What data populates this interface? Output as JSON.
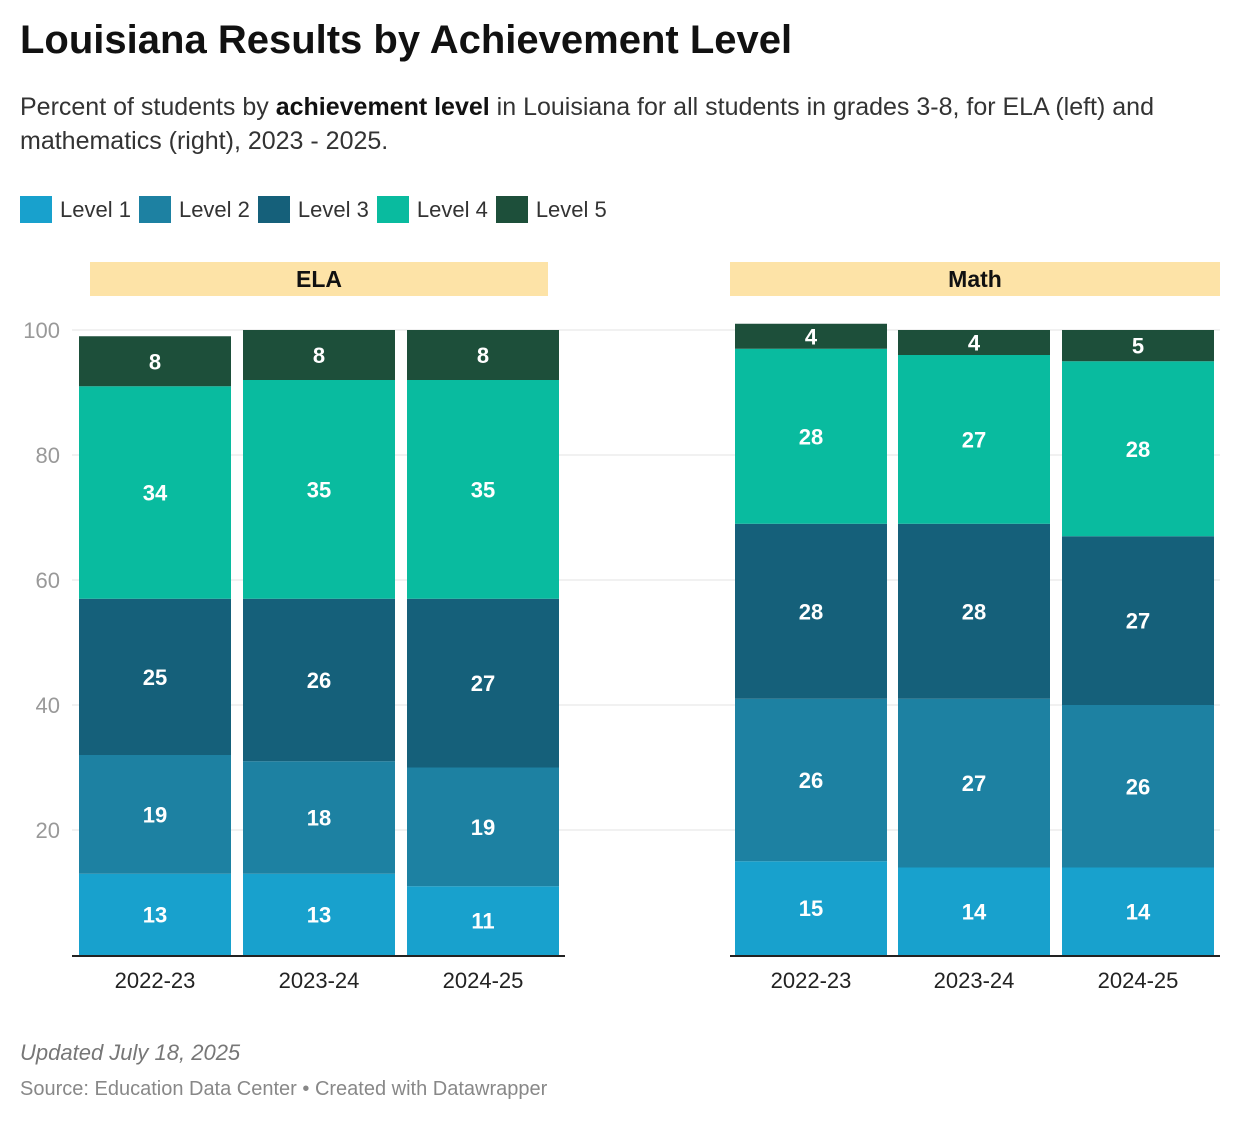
{
  "title": "Louisiana Results by Achievement Level",
  "subtitle": {
    "pre": "Percent of students by ",
    "bold": "achievement level",
    "post": " in Louisiana for all students in grades 3-8, for ELA (left) and mathematics (right), 2023 - 2025."
  },
  "footer": {
    "updated": "Updated July 18, 2025",
    "source": "Source: Education Data Center • Created with Datawrapper"
  },
  "chart_data": {
    "type": "bar",
    "stacked": true,
    "ylim": [
      0,
      100
    ],
    "yticks": [
      20,
      40,
      60,
      80,
      100
    ],
    "grid": true,
    "legend_placement": "top-left",
    "legend": [
      "Level 1",
      "Level 2",
      "Level 3",
      "Level 4",
      "Level 5"
    ],
    "colors": [
      "#18a1cd",
      "#1d81a2",
      "#15607a",
      "#09bb9f",
      "#1d4f3a"
    ],
    "panels": [
      {
        "title": "ELA",
        "categories": [
          "2022-23",
          "2023-24",
          "2024-25"
        ],
        "series": [
          {
            "name": "Level 1",
            "values": [
              13,
              13,
              11
            ]
          },
          {
            "name": "Level 2",
            "values": [
              19,
              18,
              19
            ]
          },
          {
            "name": "Level 3",
            "values": [
              25,
              26,
              27
            ]
          },
          {
            "name": "Level 4",
            "values": [
              34,
              35,
              35
            ]
          },
          {
            "name": "Level 5",
            "values": [
              8,
              8,
              8
            ]
          }
        ]
      },
      {
        "title": "Math",
        "categories": [
          "2022-23",
          "2023-24",
          "2024-25"
        ],
        "series": [
          {
            "name": "Level 1",
            "values": [
              15,
              14,
              14
            ]
          },
          {
            "name": "Level 2",
            "values": [
              26,
              27,
              26
            ]
          },
          {
            "name": "Level 3",
            "values": [
              28,
              28,
              27
            ]
          },
          {
            "name": "Level 4",
            "values": [
              28,
              27,
              28
            ]
          },
          {
            "name": "Level 5",
            "values": [
              4,
              4,
              5
            ]
          }
        ]
      }
    ]
  }
}
